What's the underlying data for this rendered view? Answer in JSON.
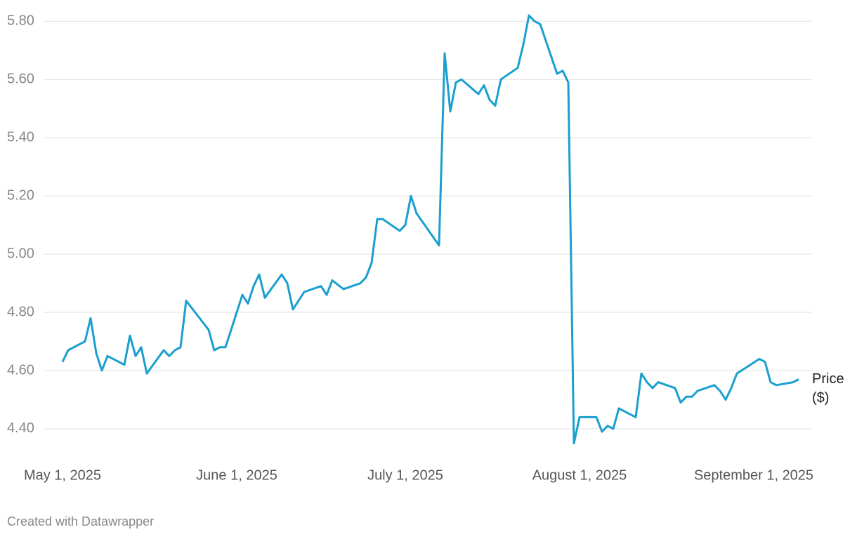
{
  "chart_data": {
    "type": "line",
    "credit": "Created with Datawrapper",
    "x": [
      "2025-05-01",
      "2025-05-02",
      "2025-05-05",
      "2025-05-06",
      "2025-05-07",
      "2025-05-08",
      "2025-05-09",
      "2025-05-12",
      "2025-05-13",
      "2025-05-14",
      "2025-05-15",
      "2025-05-16",
      "2025-05-19",
      "2025-05-20",
      "2025-05-21",
      "2025-05-22",
      "2025-05-23",
      "2025-05-27",
      "2025-05-28",
      "2025-05-29",
      "2025-05-30",
      "2025-06-02",
      "2025-06-03",
      "2025-06-04",
      "2025-06-05",
      "2025-06-06",
      "2025-06-09",
      "2025-06-10",
      "2025-06-11",
      "2025-06-13",
      "2025-06-16",
      "2025-06-17",
      "2025-06-18",
      "2025-06-20",
      "2025-06-23",
      "2025-06-24",
      "2025-06-25",
      "2025-06-26",
      "2025-06-27",
      "2025-06-30",
      "2025-07-01",
      "2025-07-02",
      "2025-07-03",
      "2025-07-07",
      "2025-07-08",
      "2025-07-09",
      "2025-07-10",
      "2025-07-11",
      "2025-07-14",
      "2025-07-15",
      "2025-07-16",
      "2025-07-17",
      "2025-07-18",
      "2025-07-21",
      "2025-07-22",
      "2025-07-23",
      "2025-07-24",
      "2025-07-25",
      "2025-07-28",
      "2025-07-29",
      "2025-07-30",
      "2025-07-31",
      "2025-08-01",
      "2025-08-04",
      "2025-08-05",
      "2025-08-06",
      "2025-08-07",
      "2025-08-08",
      "2025-08-11",
      "2025-08-12",
      "2025-08-13",
      "2025-08-14",
      "2025-08-15",
      "2025-08-18",
      "2025-08-19",
      "2025-08-20",
      "2025-08-21",
      "2025-08-22",
      "2025-08-25",
      "2025-08-26",
      "2025-08-27",
      "2025-08-28",
      "2025-08-29",
      "2025-09-02",
      "2025-09-03",
      "2025-09-04",
      "2025-09-05",
      "2025-09-08",
      "2025-09-09"
    ],
    "series": [
      {
        "name": "Price ($)",
        "color": "#1a9fcf",
        "values": [
          4.63,
          4.67,
          4.7,
          4.78,
          4.66,
          4.6,
          4.65,
          4.62,
          4.72,
          4.65,
          4.68,
          4.59,
          4.67,
          4.65,
          4.67,
          4.68,
          4.84,
          4.74,
          4.67,
          4.68,
          4.68,
          4.86,
          4.83,
          4.89,
          4.93,
          4.85,
          4.93,
          4.9,
          4.81,
          4.87,
          4.89,
          4.86,
          4.91,
          4.88,
          4.9,
          4.92,
          4.97,
          5.12,
          5.12,
          5.08,
          5.1,
          5.2,
          5.14,
          5.03,
          5.69,
          5.49,
          5.59,
          5.6,
          5.55,
          5.58,
          5.53,
          5.51,
          5.6,
          5.64,
          5.72,
          5.82,
          5.8,
          5.79,
          5.62,
          5.63,
          5.59,
          4.35,
          4.44,
          4.44,
          4.39,
          4.41,
          4.4,
          4.47,
          4.44,
          4.59,
          4.56,
          4.54,
          4.56,
          4.54,
          4.49,
          4.51,
          4.51,
          4.53,
          4.55,
          4.53,
          4.5,
          4.54,
          4.59,
          4.64,
          4.63,
          4.56,
          4.55,
          4.56,
          4.57
        ]
      }
    ],
    "xlim": [
      "2025-05-01",
      "2025-09-09"
    ],
    "xticks": [
      {
        "value": "2025-05-01",
        "label": "May 1, 2025"
      },
      {
        "value": "2025-06-01",
        "label": "June 1, 2025"
      },
      {
        "value": "2025-07-01",
        "label": "July 1, 2025"
      },
      {
        "value": "2025-08-01",
        "label": "August 1, 2025"
      },
      {
        "value": "2025-09-01",
        "label": "September 1, 2025"
      }
    ],
    "ylim": [
      4.33,
      5.82
    ],
    "yticks": [
      {
        "value": 4.4,
        "label": "4.40"
      },
      {
        "value": 4.6,
        "label": "4.60"
      },
      {
        "value": 4.8,
        "label": "4.80"
      },
      {
        "value": 5.0,
        "label": "5.00"
      },
      {
        "value": 5.2,
        "label": "5.20"
      },
      {
        "value": 5.4,
        "label": "5.40"
      },
      {
        "value": 5.6,
        "label": "5.60"
      },
      {
        "value": 5.8,
        "label": "5.80"
      }
    ],
    "grid": true
  }
}
